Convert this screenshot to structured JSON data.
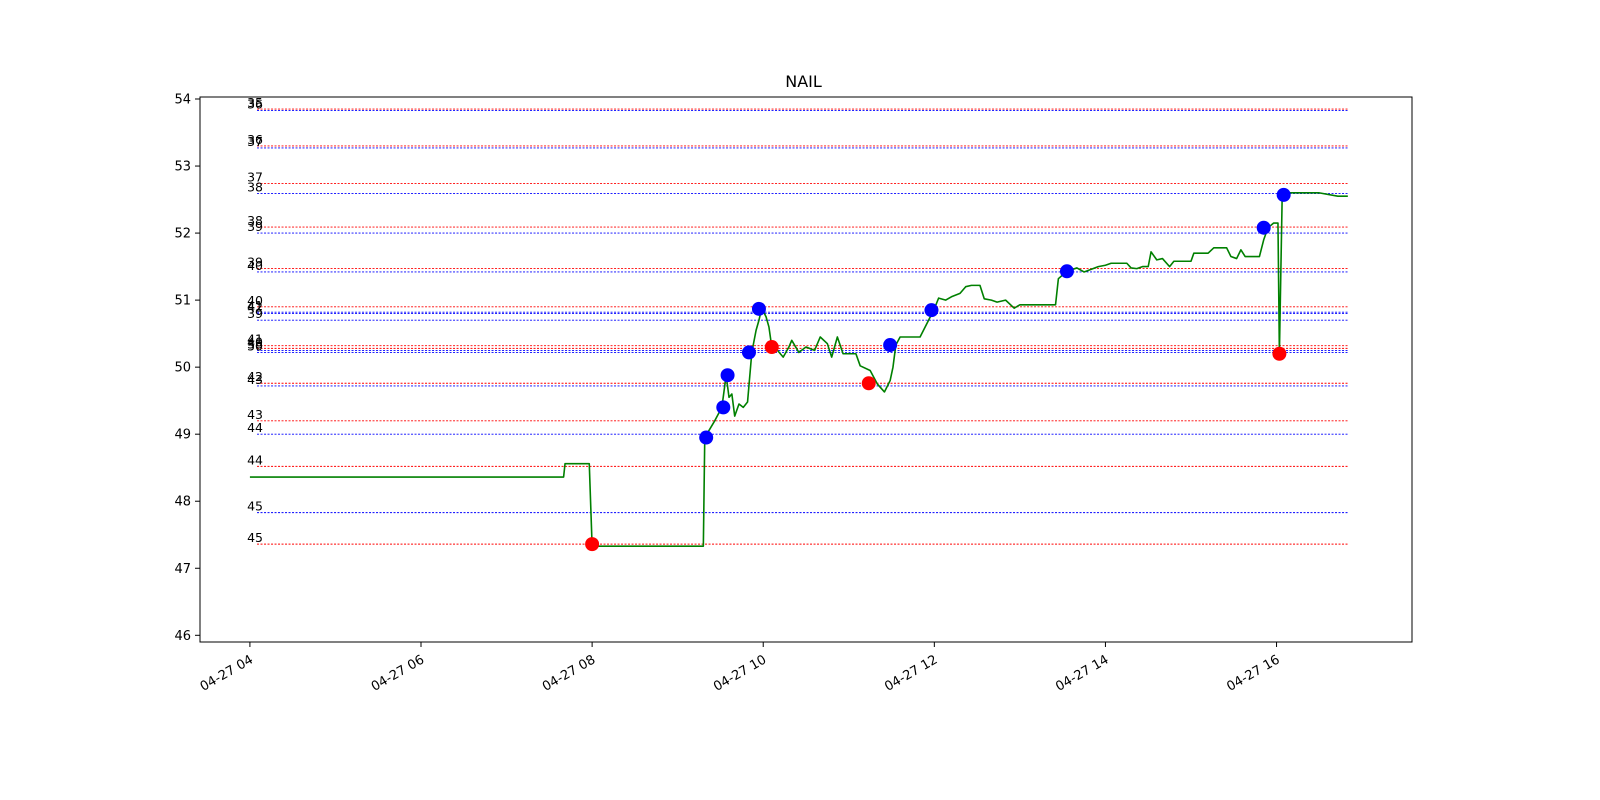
{
  "chart_data": {
    "type": "line",
    "title": "NAIL",
    "xlabel": "",
    "ylabel": "",
    "ylim": [
      45.9,
      54.03
    ],
    "xlim": [
      "2021-04-27 03:25",
      "2021-04-27 17:35"
    ],
    "yticks": [
      46,
      47,
      48,
      49,
      50,
      51,
      52,
      53,
      54
    ],
    "xticks": [
      {
        "t": "2021-04-27 04:00",
        "label": "04-27 04"
      },
      {
        "t": "2021-04-27 06:00",
        "label": "04-27 06"
      },
      {
        "t": "2021-04-27 08:00",
        "label": "04-27 08"
      },
      {
        "t": "2021-04-27 10:00",
        "label": "04-27 10"
      },
      {
        "t": "2021-04-27 12:00",
        "label": "04-27 12"
      },
      {
        "t": "2021-04-27 14:00",
        "label": "04-27 14"
      },
      {
        "t": "2021-04-27 16:00",
        "label": "04-27 16"
      }
    ],
    "grid": false,
    "series": [
      {
        "color": "#008000",
        "points": [
          [
            "2021-04-27 04:00",
            48.36
          ],
          [
            "2021-04-27 07:40",
            48.36
          ],
          [
            "2021-04-27 07:41",
            48.56
          ],
          [
            "2021-04-27 07:58",
            48.56
          ],
          [
            "2021-04-27 08:00",
            47.33
          ],
          [
            "2021-04-27 09:18",
            47.33
          ],
          [
            "2021-04-27 09:19",
            48.95
          ],
          [
            "2021-04-27 09:26",
            49.2
          ],
          [
            "2021-04-27 09:31",
            49.4
          ],
          [
            "2021-04-27 09:34",
            49.88
          ],
          [
            "2021-04-27 09:36",
            49.55
          ],
          [
            "2021-04-27 09:38",
            49.6
          ],
          [
            "2021-04-27 09:40",
            49.27
          ],
          [
            "2021-04-27 09:43",
            49.45
          ],
          [
            "2021-04-27 09:46",
            49.4
          ],
          [
            "2021-04-27 09:49",
            49.48
          ],
          [
            "2021-04-27 09:52",
            50.22
          ],
          [
            "2021-04-27 09:55",
            50.55
          ],
          [
            "2021-04-27 09:57",
            50.7
          ],
          [
            "2021-04-27 09:59",
            50.88
          ],
          [
            "2021-04-27 10:02",
            50.75
          ],
          [
            "2021-04-27 10:04",
            50.6
          ],
          [
            "2021-04-27 10:06",
            50.3
          ],
          [
            "2021-04-27 10:10",
            50.25
          ],
          [
            "2021-04-27 10:14",
            50.15
          ],
          [
            "2021-04-27 10:18",
            50.3
          ],
          [
            "2021-04-27 10:20",
            50.4
          ],
          [
            "2021-04-27 10:25",
            50.22
          ],
          [
            "2021-04-27 10:30",
            50.3
          ],
          [
            "2021-04-27 10:36",
            50.25
          ],
          [
            "2021-04-27 10:40",
            50.45
          ],
          [
            "2021-04-27 10:45",
            50.35
          ],
          [
            "2021-04-27 10:48",
            50.15
          ],
          [
            "2021-04-27 10:52",
            50.45
          ],
          [
            "2021-04-27 10:56",
            50.2
          ],
          [
            "2021-04-27 11:05",
            50.2
          ],
          [
            "2021-04-27 11:08",
            50.02
          ],
          [
            "2021-04-27 11:15",
            49.95
          ],
          [
            "2021-04-27 11:20",
            49.75
          ],
          [
            "2021-04-27 11:25",
            49.63
          ],
          [
            "2021-04-27 11:29",
            49.8
          ],
          [
            "2021-04-27 11:31",
            50.0
          ],
          [
            "2021-04-27 11:33",
            50.33
          ],
          [
            "2021-04-27 11:36",
            50.45
          ],
          [
            "2021-04-27 11:50",
            50.45
          ],
          [
            "2021-04-27 12:00",
            50.87
          ],
          [
            "2021-04-27 12:03",
            51.03
          ],
          [
            "2021-04-27 12:08",
            51.0
          ],
          [
            "2021-04-27 12:12",
            51.05
          ],
          [
            "2021-04-27 12:18",
            51.1
          ],
          [
            "2021-04-27 12:22",
            51.2
          ],
          [
            "2021-04-27 12:26",
            51.22
          ],
          [
            "2021-04-27 12:32",
            51.22
          ],
          [
            "2021-04-27 12:35",
            51.02
          ],
          [
            "2021-04-27 12:40",
            51.0
          ],
          [
            "2021-04-27 12:44",
            50.97
          ],
          [
            "2021-04-27 12:50",
            51.0
          ],
          [
            "2021-04-27 12:56",
            50.88
          ],
          [
            "2021-04-27 13:00",
            50.93
          ],
          [
            "2021-04-27 13:15",
            50.93
          ],
          [
            "2021-04-27 13:25",
            50.93
          ],
          [
            "2021-04-27 13:27",
            51.32
          ],
          [
            "2021-04-27 13:33",
            51.43
          ],
          [
            "2021-04-27 13:40",
            51.48
          ],
          [
            "2021-04-27 13:45",
            51.42
          ],
          [
            "2021-04-27 13:55",
            51.5
          ],
          [
            "2021-04-27 14:00",
            51.52
          ],
          [
            "2021-04-27 14:04",
            51.55
          ],
          [
            "2021-04-27 14:15",
            51.55
          ],
          [
            "2021-04-27 14:18",
            51.48
          ],
          [
            "2021-04-27 14:22",
            51.47
          ],
          [
            "2021-04-27 14:26",
            51.5
          ],
          [
            "2021-04-27 14:30",
            51.5
          ],
          [
            "2021-04-27 14:32",
            51.72
          ],
          [
            "2021-04-27 14:36",
            51.6
          ],
          [
            "2021-04-27 14:40",
            51.62
          ],
          [
            "2021-04-27 14:45",
            51.5
          ],
          [
            "2021-04-27 14:48",
            51.58
          ],
          [
            "2021-04-27 15:00",
            51.58
          ],
          [
            "2021-04-27 15:02",
            51.7
          ],
          [
            "2021-04-27 15:12",
            51.7
          ],
          [
            "2021-04-27 15:16",
            51.78
          ],
          [
            "2021-04-27 15:25",
            51.78
          ],
          [
            "2021-04-27 15:28",
            51.65
          ],
          [
            "2021-04-27 15:32",
            51.62
          ],
          [
            "2021-04-27 15:35",
            51.75
          ],
          [
            "2021-04-27 15:38",
            51.65
          ],
          [
            "2021-04-27 15:48",
            51.65
          ],
          [
            "2021-04-27 15:51",
            51.9
          ],
          [
            "2021-04-27 15:54",
            52.08
          ],
          [
            "2021-04-27 15:58",
            52.15
          ],
          [
            "2021-04-27 16:01",
            52.15
          ],
          [
            "2021-04-27 16:02",
            50.2
          ],
          [
            "2021-04-27 16:04",
            52.6
          ],
          [
            "2021-04-27 16:30",
            52.6
          ],
          [
            "2021-04-27 16:43",
            52.55
          ],
          [
            "2021-04-27 16:50",
            52.55
          ]
        ]
      }
    ],
    "buy_markers": {
      "color": "#0000ff",
      "points": [
        [
          "2021-04-27 09:20",
          48.95
        ],
        [
          "2021-04-27 09:32",
          49.4
        ],
        [
          "2021-04-27 09:35",
          49.88
        ],
        [
          "2021-04-27 09:50",
          50.22
        ],
        [
          "2021-04-27 09:57",
          50.87
        ],
        [
          "2021-04-27 11:29",
          50.33
        ],
        [
          "2021-04-27 11:58",
          50.85
        ],
        [
          "2021-04-27 13:33",
          51.43
        ],
        [
          "2021-04-27 15:51",
          52.08
        ],
        [
          "2021-04-27 16:05",
          52.57
        ]
      ]
    },
    "sell_markers": {
      "color": "#ff0000",
      "points": [
        [
          "2021-04-27 08:00",
          47.36
        ],
        [
          "2021-04-27 10:06",
          50.3
        ],
        [
          "2021-04-27 11:14",
          49.76
        ],
        [
          "2021-04-27 16:02",
          50.2
        ]
      ]
    },
    "levels": [
      {
        "y": 53.85,
        "label": "35",
        "color": "#ff0000"
      },
      {
        "y": 53.83,
        "label": "36",
        "color": "#0000ff"
      },
      {
        "y": 53.3,
        "label": "36",
        "color": "#ff0000"
      },
      {
        "y": 53.27,
        "label": "37",
        "color": "#0000ff"
      },
      {
        "y": 52.74,
        "label": "37",
        "color": "#ff0000"
      },
      {
        "y": 52.59,
        "label": "38",
        "color": "#0000ff"
      },
      {
        "y": 52.09,
        "label": "38",
        "color": "#ff0000"
      },
      {
        "y": 52.0,
        "label": "39",
        "color": "#0000ff"
      },
      {
        "y": 51.47,
        "label": "39",
        "color": "#ff0000"
      },
      {
        "y": 51.42,
        "label": "40",
        "color": "#0000ff"
      },
      {
        "y": 50.9,
        "label": "40",
        "color": "#ff0000"
      },
      {
        "y": 50.82,
        "label": "41",
        "color": "#0000ff"
      },
      {
        "y": 50.8,
        "label": "42",
        "color": "#0000ff"
      },
      {
        "y": 50.7,
        "label": "39",
        "color": "#0000ff"
      },
      {
        "y": 50.32,
        "label": "41",
        "color": "#ff0000"
      },
      {
        "y": 50.28,
        "label": "40",
        "color": "#ff0000"
      },
      {
        "y": 50.25,
        "label": "38",
        "color": "#0000ff"
      },
      {
        "y": 50.22,
        "label": "50",
        "color": "#0000ff"
      },
      {
        "y": 49.76,
        "label": "42",
        "color": "#ff0000"
      },
      {
        "y": 49.72,
        "label": "43",
        "color": "#0000ff"
      },
      {
        "y": 49.2,
        "label": "43",
        "color": "#ff0000"
      },
      {
        "y": 49.0,
        "label": "44",
        "color": "#0000ff"
      },
      {
        "y": 48.52,
        "label": "44",
        "color": "#ff0000"
      },
      {
        "y": 47.83,
        "label": "45",
        "color": "#0000ff"
      },
      {
        "y": 47.36,
        "label": "45",
        "color": "#ff0000"
      }
    ],
    "levels_x_range": [
      "2021-04-27 04:05",
      "2021-04-27 16:50"
    ]
  }
}
